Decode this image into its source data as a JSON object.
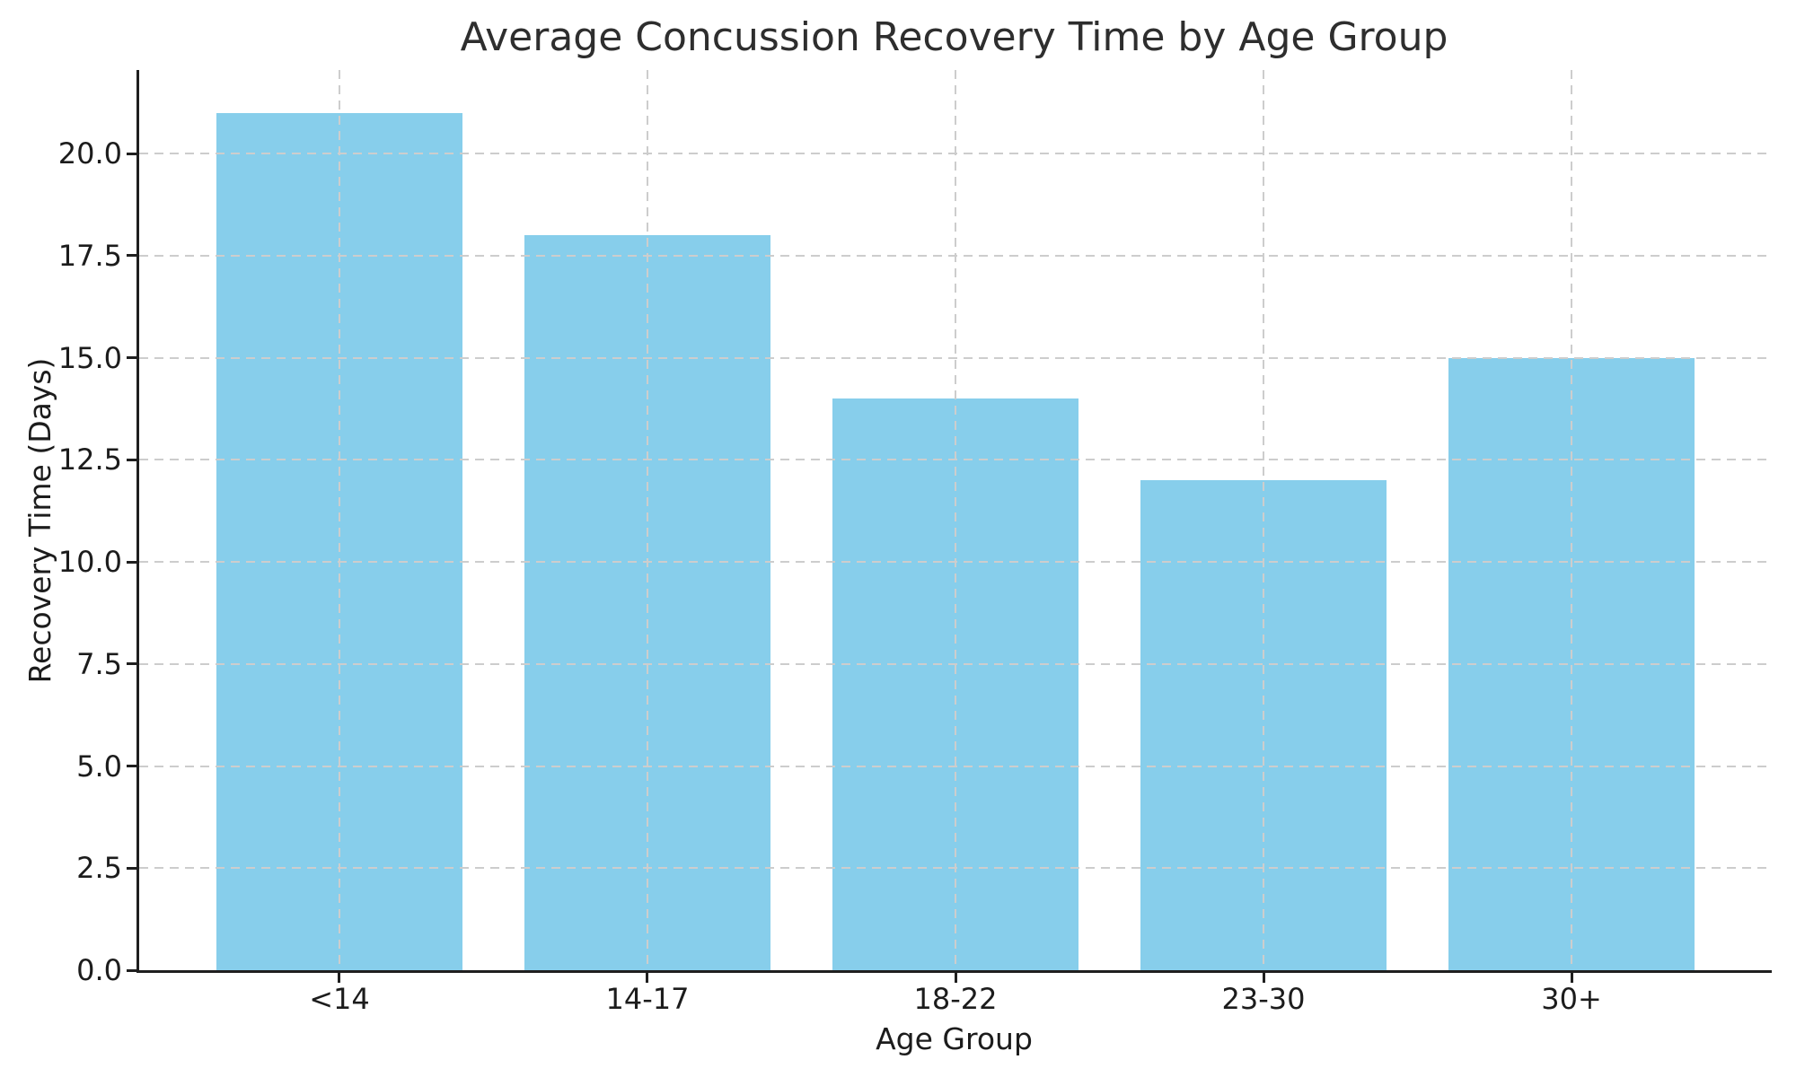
{
  "chart_data": {
    "type": "bar",
    "title": "Average Concussion Recovery Time by Age Group",
    "xlabel": "Age Group",
    "ylabel": "Recovery Time (Days)",
    "categories": [
      "<14",
      "14-17",
      "18-22",
      "23-30",
      "30+"
    ],
    "values": [
      21,
      18,
      14,
      12,
      15
    ],
    "ylim": [
      0,
      22.05
    ],
    "yticks": [
      0.0,
      2.5,
      5.0,
      7.5,
      10.0,
      12.5,
      15.0,
      17.5,
      20.0
    ],
    "ytick_decimals": 1,
    "legend": "none",
    "grid": {
      "visible": true,
      "line_style": "dashed",
      "axes": "both",
      "drawn_over_bars": true
    },
    "colors": {
      "bar": "#87CEEB",
      "grid": "#cdcdcd",
      "spine": "#1f1f1f",
      "tick_text": "#1c1c1c",
      "title_text": "#2e2e2e",
      "background": "#ffffff"
    }
  }
}
